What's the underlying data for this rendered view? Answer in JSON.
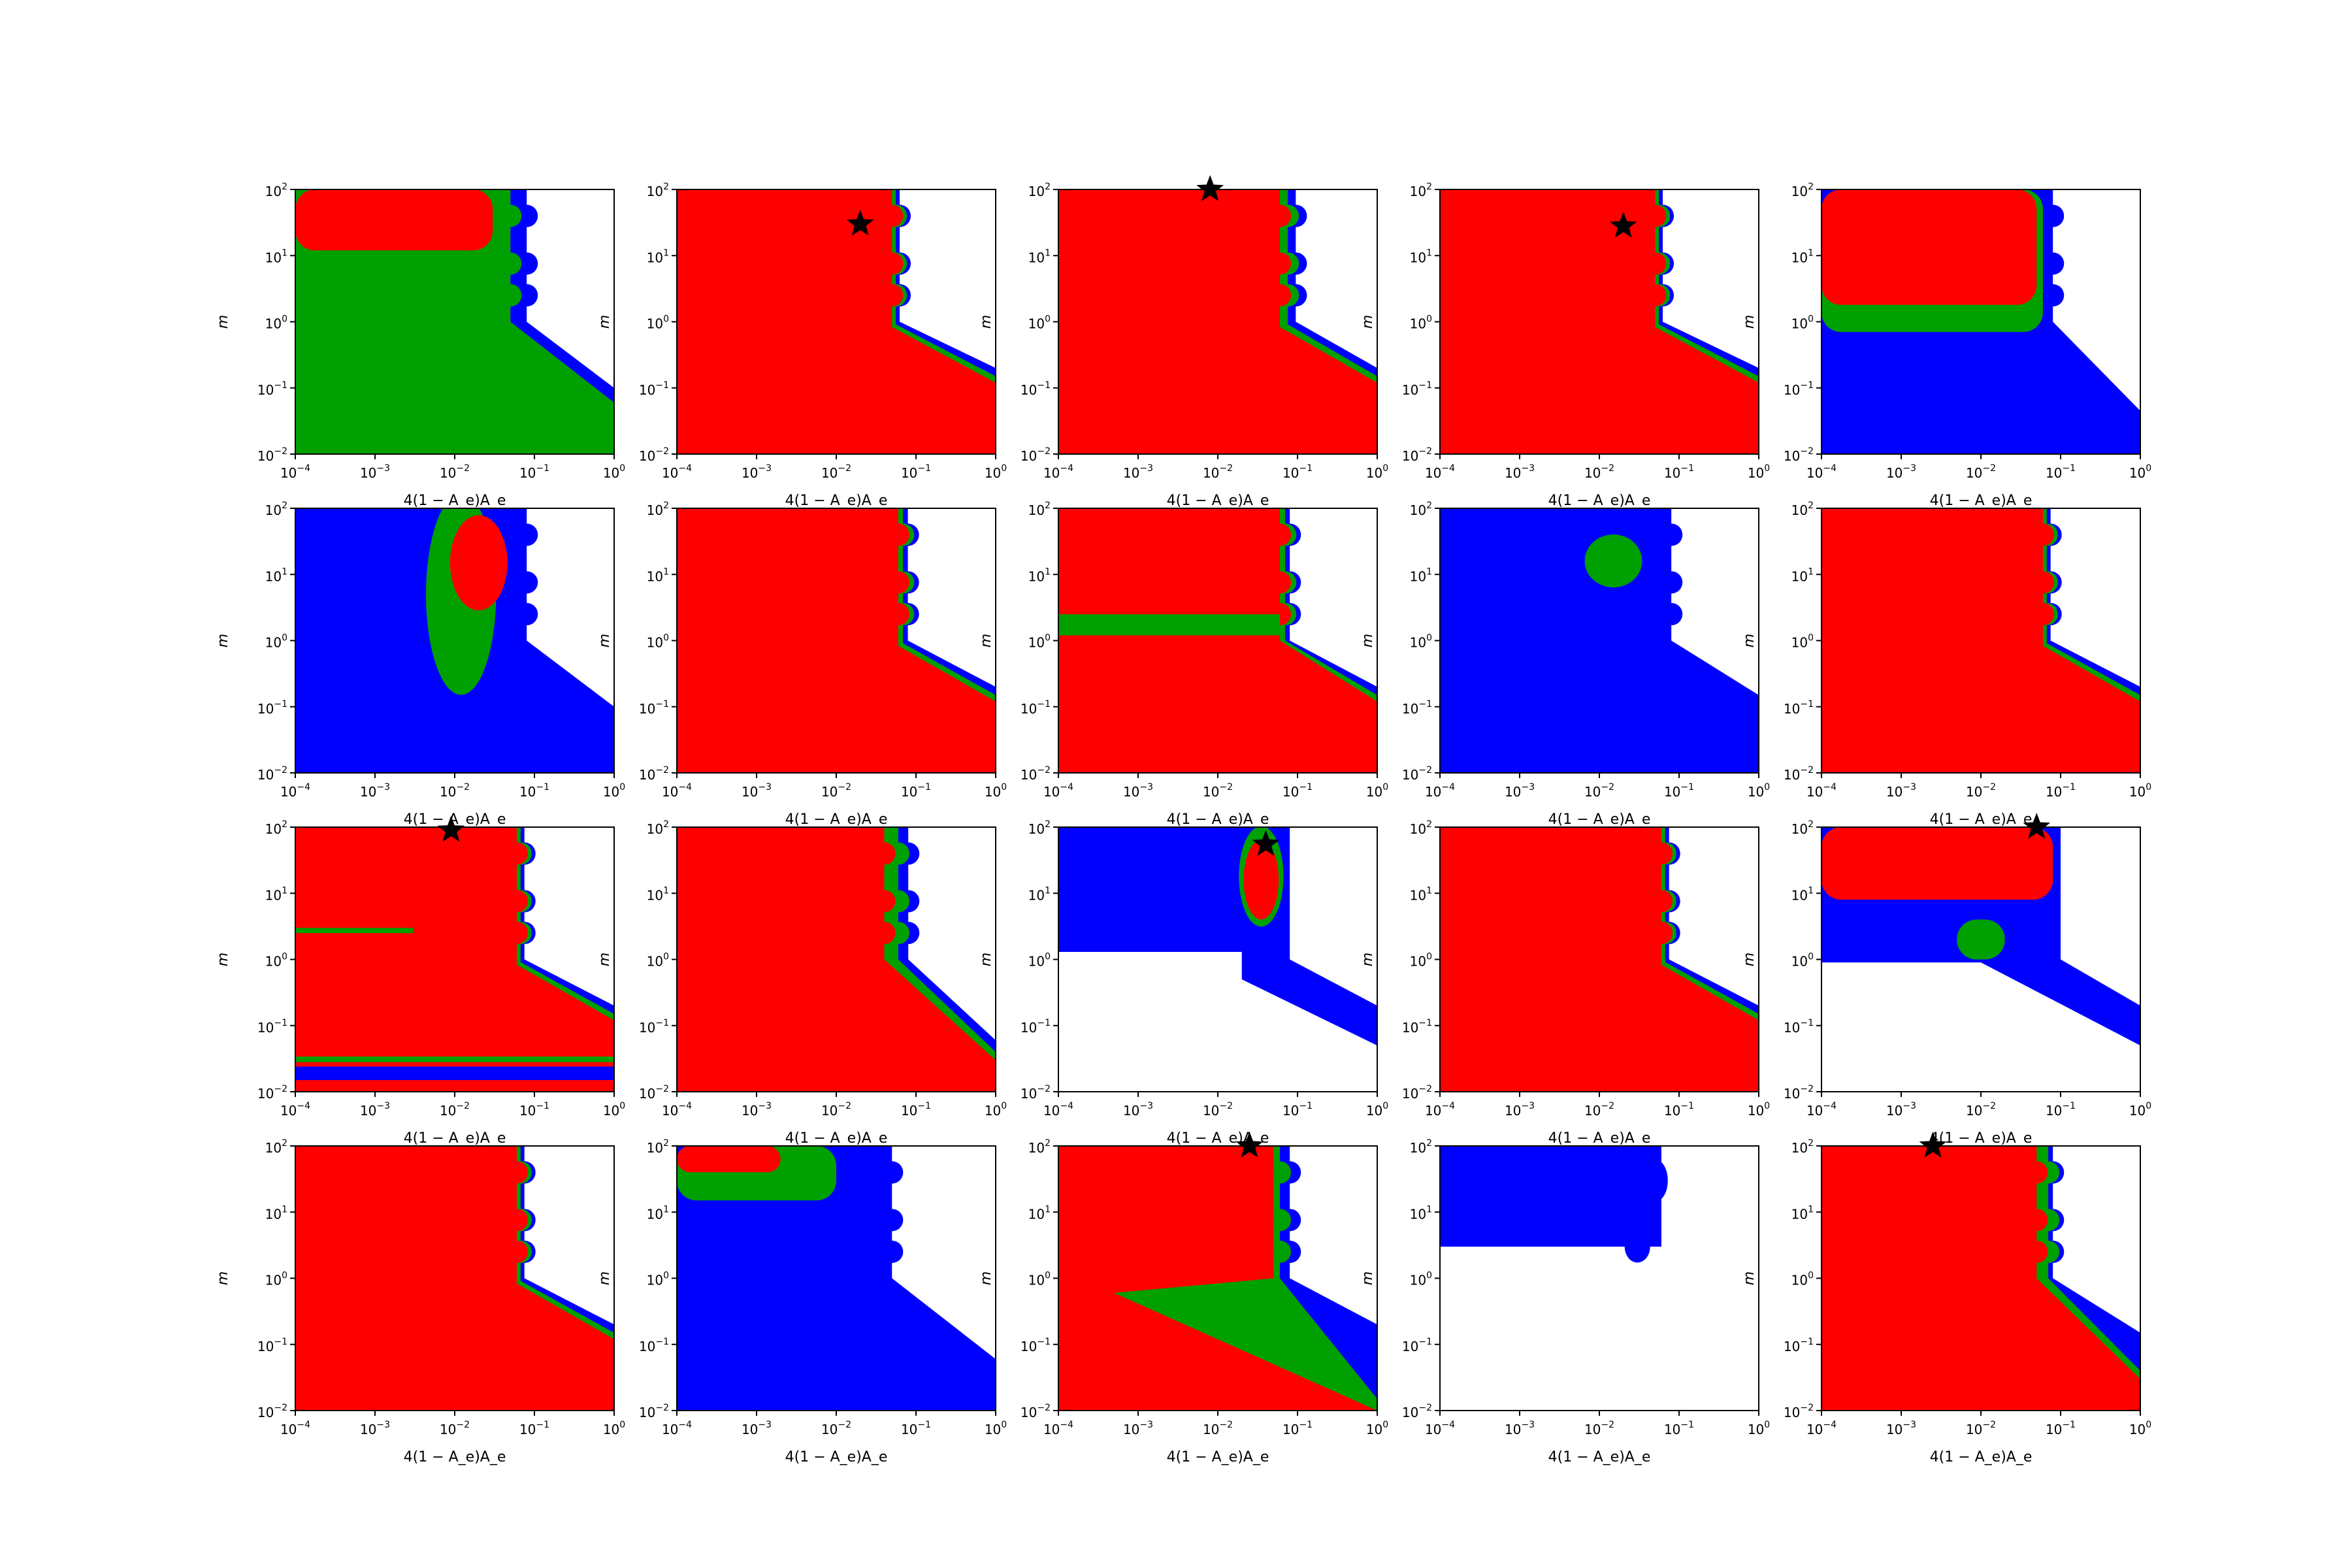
{
  "figure": {
    "xlabel": "4(1 − A_e)A_e",
    "ylabel": "m",
    "x_ticks": [
      {
        "base": "10",
        "exp": "−4"
      },
      {
        "base": "10",
        "exp": "−3"
      },
      {
        "base": "10",
        "exp": "−2"
      },
      {
        "base": "10",
        "exp": "−1"
      },
      {
        "base": "10",
        "exp": "0"
      }
    ],
    "y_ticks": [
      {
        "base": "10",
        "exp": "−2"
      },
      {
        "base": "10",
        "exp": "−1"
      },
      {
        "base": "10",
        "exp": "0"
      },
      {
        "base": "10",
        "exp": "1"
      },
      {
        "base": "10",
        "exp": "2"
      }
    ],
    "colors": {
      "red": "#ff0000",
      "green": "#00a000",
      "blue": "#0000ff",
      "star": "#000000"
    }
  },
  "chart_data": {
    "type": "heatmap",
    "grid": {
      "rows": 4,
      "cols": 5
    },
    "xscale": "log",
    "yscale": "log",
    "xlim": [
      0.0001,
      1
    ],
    "ylim": [
      0.01,
      100
    ],
    "xlabel": "4(1 − A_e)A_e",
    "ylabel": "m",
    "legend": "none",
    "region_colors": [
      "red",
      "green",
      "blue",
      "white"
    ],
    "panels": [
      {
        "panel": 1,
        "star": null,
        "regions": [
          {
            "color": "red",
            "x_max": 0.03,
            "y_min": 12
          },
          {
            "color": "green",
            "x_max": 0.05,
            "boundary": "diagonal"
          },
          {
            "color": "blue",
            "x_max": 0.08,
            "boundary": "diagonal"
          }
        ]
      },
      {
        "panel": 2,
        "star": [
          0.02,
          30
        ],
        "regions": [
          {
            "color": "red",
            "x_max": 0.06,
            "boundary": "diagonal"
          },
          {
            "color": "green",
            "band": "thin edge"
          },
          {
            "color": "blue",
            "band": "thin edge"
          }
        ]
      },
      {
        "panel": 3,
        "star": [
          0.008,
          100
        ],
        "regions": [
          {
            "color": "red",
            "x_max": 0.08,
            "boundary": "diagonal"
          },
          {
            "color": "green",
            "band": "edge"
          },
          {
            "color": "blue",
            "band": "edge"
          }
        ]
      },
      {
        "panel": 4,
        "star": [
          0.02,
          28
        ],
        "regions": [
          {
            "color": "red",
            "x_max": 0.06,
            "boundary": "diagonal"
          },
          {
            "color": "green",
            "band": "thin edge"
          },
          {
            "color": "blue",
            "band": "thin edge"
          }
        ]
      },
      {
        "panel": 5,
        "star": null,
        "regions": [
          {
            "color": "red",
            "x_max": 0.05,
            "y_min": 1.8
          },
          {
            "color": "green",
            "y_range": [
              0.7,
              1.8
            ]
          },
          {
            "color": "blue",
            "boundary": "diagonal"
          }
        ]
      },
      {
        "panel": 6,
        "star": null,
        "regions": [
          {
            "color": "blue",
            "boundary": "diagonal"
          },
          {
            "color": "green",
            "x_range": [
              0.003,
              0.04
            ],
            "y_range": [
              0.3,
              100
            ]
          },
          {
            "color": "red",
            "x_range": [
              0.01,
              0.04
            ],
            "y_range": [
              3,
              60
            ]
          }
        ]
      },
      {
        "panel": 7,
        "star": null,
        "regions": [
          {
            "color": "red",
            "x_max": 0.06,
            "boundary": "diagonal"
          },
          {
            "color": "green",
            "band": "thin edge"
          },
          {
            "color": "blue",
            "band": "thin edge"
          }
        ]
      },
      {
        "panel": 8,
        "star": null,
        "regions": [
          {
            "color": "red",
            "x_max": 0.06,
            "y_min": 2.5
          },
          {
            "color": "green",
            "y_range": [
              1.2,
              2.5
            ]
          },
          {
            "color": "red",
            "y_max": 1.2,
            "boundary": "diagonal"
          },
          {
            "color": "blue",
            "band": "edge"
          }
        ]
      },
      {
        "panel": 9,
        "star": null,
        "regions": [
          {
            "color": "blue",
            "boundary": "diagonal"
          },
          {
            "color": "green",
            "x_range": [
              0.004,
              0.04
            ],
            "y_range": [
              6,
              60
            ]
          }
        ]
      },
      {
        "panel": 10,
        "star": null,
        "regions": [
          {
            "color": "red",
            "x_max": 0.06,
            "boundary": "diagonal"
          },
          {
            "color": "green",
            "band": "thin edge"
          },
          {
            "color": "blue",
            "band": "thin edge"
          }
        ]
      },
      {
        "panel": 11,
        "star": [
          0.009,
          90
        ],
        "regions": [
          {
            "color": "red",
            "x_max": 0.06,
            "boundary": "diagonal"
          },
          {
            "color": "green",
            "y_range": [
              2.5,
              3
            ],
            "x_max": 0.003
          },
          {
            "color": "green",
            "y_range": [
              0.028,
              0.034
            ]
          },
          {
            "color": "blue",
            "y_range": [
              0.015,
              0.024
            ]
          }
        ]
      },
      {
        "panel": 12,
        "star": null,
        "regions": [
          {
            "color": "red",
            "x_max": 0.04,
            "y_min": 0.03
          },
          {
            "color": "green",
            "y_range": [
              0.01,
              0.03
            ]
          },
          {
            "color": "blue",
            "band": "edge"
          }
        ]
      },
      {
        "panel": 13,
        "star": [
          0.04,
          55
        ],
        "regions": [
          {
            "color": "blue",
            "y_min": 1.3,
            "boundary": "diagonal"
          },
          {
            "color": "green",
            "x_range": [
              0.015,
              0.07
            ],
            "y_range": [
              4,
              60
            ]
          },
          {
            "color": "red",
            "x_range": [
              0.02,
              0.06
            ],
            "y_range": [
              5,
              40
            ]
          }
        ]
      },
      {
        "panel": 14,
        "star": null,
        "regions": [
          {
            "color": "red",
            "x_max": 0.06,
            "boundary": "diagonal"
          },
          {
            "color": "green",
            "band": "thin edge"
          },
          {
            "color": "blue",
            "band": "thin edge"
          }
        ]
      },
      {
        "panel": 15,
        "star": [
          0.05,
          100
        ],
        "regions": [
          {
            "color": "red",
            "x_max": 0.08,
            "y_min": 8
          },
          {
            "color": "blue",
            "y_min": 0.9,
            "boundary": "diagonal"
          },
          {
            "color": "green",
            "x_range": [
              0.005,
              0.02
            ],
            "y_range": [
              1,
              4
            ]
          }
        ]
      },
      {
        "panel": 16,
        "star": null,
        "regions": [
          {
            "color": "red",
            "x_max": 0.06,
            "boundary": "diagonal"
          },
          {
            "color": "green",
            "band": "thin edge"
          },
          {
            "color": "blue",
            "band": "thin edge"
          }
        ]
      },
      {
        "panel": 17,
        "star": null,
        "regions": [
          {
            "color": "red",
            "x_max": 0.002,
            "y_min": 40
          },
          {
            "color": "green",
            "x_max": 0.01,
            "y_min": 15
          },
          {
            "color": "blue",
            "x_max": 0.05,
            "boundary": "diagonal"
          }
        ]
      },
      {
        "panel": 18,
        "star": [
          0.025,
          100
        ],
        "regions": [
          {
            "color": "red",
            "boundary": "diagonal"
          },
          {
            "color": "green",
            "band": "diagonal wedge"
          },
          {
            "color": "blue",
            "band": "edge"
          }
        ]
      },
      {
        "panel": 19,
        "star": null,
        "regions": [
          {
            "color": "blue",
            "x_max": 0.04,
            "y_min": 3
          }
        ]
      },
      {
        "panel": 20,
        "star": [
          0.0025,
          100
        ],
        "regions": [
          {
            "color": "red",
            "x_max": 0.1,
            "y_min": 0.025
          },
          {
            "color": "green",
            "y_range": [
              0.012,
              0.025
            ]
          },
          {
            "color": "blue",
            "band": "edge"
          }
        ]
      }
    ]
  }
}
